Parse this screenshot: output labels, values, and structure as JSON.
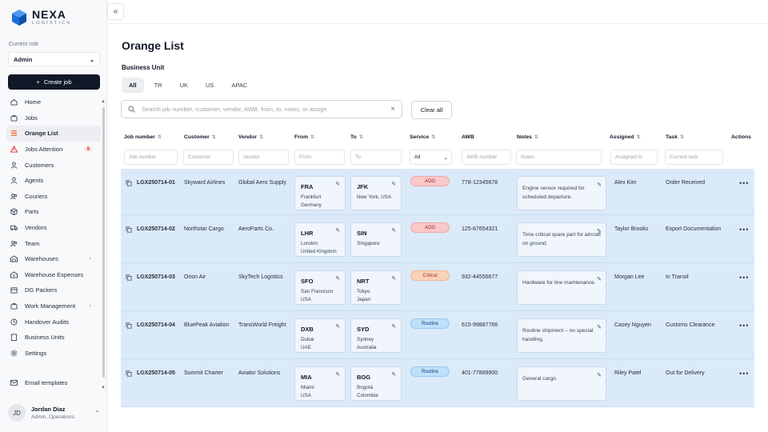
{
  "brand": {
    "name": "NEXA",
    "sub": "LOGISTICS"
  },
  "role": {
    "label": "Current role",
    "value": "Admin"
  },
  "create_job": "Create job",
  "nav": [
    {
      "label": "Home",
      "icon": "home-icon"
    },
    {
      "label": "Jobs",
      "icon": "briefcase-icon"
    },
    {
      "label": "Orange List",
      "icon": "list-icon",
      "active": true
    },
    {
      "label": "Jobs Attention",
      "icon": "alert-icon",
      "badge": "9"
    },
    {
      "label": "Customers",
      "icon": "user-icon"
    },
    {
      "label": "Agents",
      "icon": "agent-icon"
    },
    {
      "label": "Couriers",
      "icon": "courier-icon"
    },
    {
      "label": "Parts",
      "icon": "box-icon"
    },
    {
      "label": "Vendors",
      "icon": "truck-icon"
    },
    {
      "label": "Team",
      "icon": "team-icon"
    },
    {
      "label": "Warehouses",
      "icon": "warehouse-icon",
      "chevron": true
    },
    {
      "label": "Warehouse Expenses",
      "icon": "expense-icon"
    },
    {
      "label": "DG Packers",
      "icon": "package-icon"
    },
    {
      "label": "Work Management",
      "icon": "work-icon",
      "chevron": true
    },
    {
      "label": "Handover Audits",
      "icon": "audit-icon"
    },
    {
      "label": "Business Units",
      "icon": "building-icon"
    },
    {
      "label": "Settings",
      "icon": "gear-icon"
    }
  ],
  "email_templates": "Email templates",
  "user": {
    "initials": "JD",
    "name": "Jordan Diaz",
    "role": "Admin, Operations"
  },
  "page": {
    "title": "Orange List",
    "business_unit_label": "Business Unit",
    "tabs": [
      "All",
      "TR",
      "UK",
      "US",
      "APAC"
    ],
    "search_placeholder": "Search job number, customer, vendor, AWB, from, to, notes, or assign",
    "clear_all": "Clear all"
  },
  "columns": [
    "Job number",
    "Customer",
    "Vendor",
    "From",
    "To",
    "Service",
    "AWB",
    "Notes",
    "Assigned",
    "Task",
    "Actions"
  ],
  "filters": {
    "job": "Job number",
    "customer": "Customer",
    "vendor": "Vendor",
    "from": "From",
    "to": "To",
    "service": "All",
    "awb": "AWB number",
    "notes": "Notes",
    "assigned": "Assigned to",
    "task": "Current task"
  },
  "rows": [
    {
      "job": "LGX250714-01",
      "customer": "Skyward Airlines",
      "vendor": "Global Aero Supply",
      "from_code": "FRA",
      "from_city": "Frankfurt",
      "from_country": "Germany",
      "to_code": "JFK",
      "to_city": "New York, USA",
      "to_country": "",
      "service": "AOG",
      "awb": "778-12345678",
      "notes": "Engine sensor required for scheduled departure.",
      "assigned": "Alex Kim",
      "task": "Order Received"
    },
    {
      "job": "LGX250714-02",
      "customer": "Northstar Cargo",
      "vendor": "AeroParts Co.",
      "from_code": "LHR",
      "from_city": "London",
      "from_country": "United Kingdom",
      "to_code": "SIN",
      "to_city": "Singapore",
      "to_country": "",
      "service": "AOG",
      "awb": "125-87654321",
      "notes": "Time critical spare part for aircraft on ground.",
      "assigned": "Taylor Brooks",
      "task": "Export Documentation"
    },
    {
      "job": "LGX250714-03",
      "customer": "Orion Air",
      "vendor": "SkyTech Logistics",
      "from_code": "SFO",
      "from_city": "San Francisco",
      "from_country": "USA",
      "to_code": "NRT",
      "to_city": "Tokyo",
      "to_country": "Japan",
      "service": "Critical",
      "awb": "932-44556677",
      "notes": "Hardware for line maintenance.",
      "assigned": "Morgan Lee",
      "task": "In Transit"
    },
    {
      "job": "LGX250714-04",
      "customer": "BluePeak Aviation",
      "vendor": "TransWorld Freight",
      "from_code": "DXB",
      "from_city": "Dubai",
      "from_country": "UAE",
      "to_code": "SYD",
      "to_city": "Sydney",
      "to_country": "Australia",
      "service": "Routine",
      "awb": "615-99887766",
      "notes": "Routine shipment – no special handling.",
      "assigned": "Casey Nguyen",
      "task": "Customs Clearance"
    },
    {
      "job": "LGX250714-05",
      "customer": "Summit Charter",
      "vendor": "Aviator Solutions",
      "from_code": "MIA",
      "from_city": "Miami",
      "from_country": "USA",
      "to_code": "BOG",
      "to_city": "Bogotá",
      "to_country": "Colombia",
      "service": "Routine",
      "awb": "401-77889900",
      "notes": "General cargo.",
      "assigned": "Riley Patel",
      "task": "Out for Delivery"
    }
  ],
  "colors": {
    "row_bg": "#dbeaf8",
    "aog": "#f9c8c8",
    "critical": "#f9d3b8",
    "routine": "#bfe0fa",
    "primary": "#111827"
  }
}
